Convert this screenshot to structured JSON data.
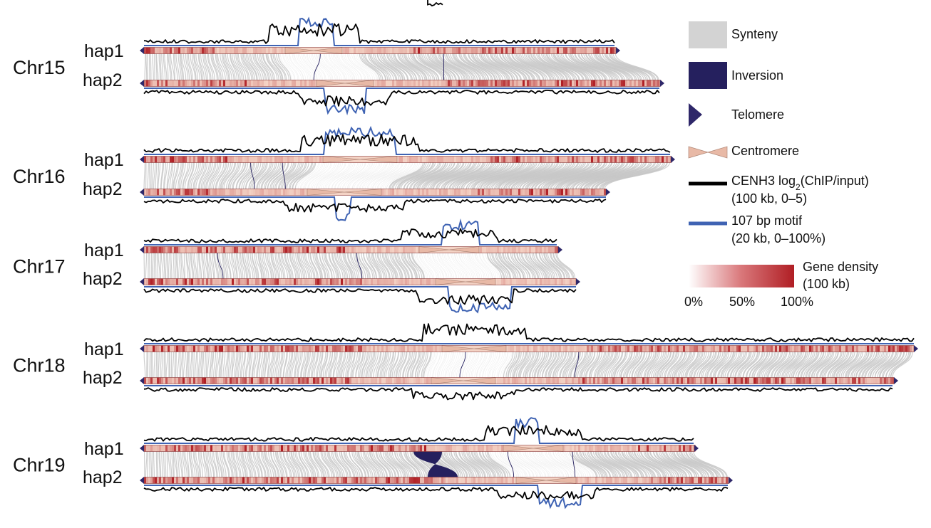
{
  "legend": {
    "synteny": "Synteny",
    "inversion": "Inversion",
    "telomere": "Telomere",
    "centromere": "Centromere",
    "cenh3_line1_pre": "CENH3 log",
    "cenh3_line1_sub": "2",
    "cenh3_line1_post": "(ChIP/input)",
    "cenh3_line2": "(100 kb, 0–5)",
    "motif_line1": "107 bp motif",
    "motif_line2": "(20 kb, 0–100%)",
    "gene_density_line1": "Gene density",
    "gene_density_line2": "(100 kb)",
    "scale_ticks": [
      "0%",
      "50%",
      "100%"
    ]
  },
  "colors": {
    "synteny": "#d3d3d3",
    "inversion": "#25205e",
    "telomere": "#2e2769",
    "centromere": "#e8b9a6",
    "cenh3": "#000000",
    "motif": "#3f63b3",
    "gene_low": "#ffffff",
    "gene_high": "#b01e24"
  },
  "chromosomes": [
    {
      "name": "Chr15",
      "hap1": "hap1",
      "hap2": "hap2"
    },
    {
      "name": "Chr16",
      "hap1": "hap1",
      "hap2": "hap2"
    },
    {
      "name": "Chr17",
      "hap1": "hap1",
      "hap2": "hap2"
    },
    {
      "name": "Chr18",
      "hap1": "hap1",
      "hap2": "hap2"
    },
    {
      "name": "Chr19",
      "hap1": "hap1",
      "hap2": "hap2"
    }
  ]
}
